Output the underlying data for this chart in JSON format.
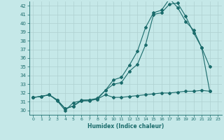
{
  "xlabel": "Humidex (Indice chaleur)",
  "xlim": [
    -0.5,
    23.5
  ],
  "ylim": [
    29.5,
    42.5
  ],
  "yticks": [
    30,
    31,
    32,
    33,
    34,
    35,
    36,
    37,
    38,
    39,
    40,
    41,
    42
  ],
  "xticks": [
    0,
    1,
    2,
    3,
    4,
    5,
    6,
    7,
    8,
    9,
    10,
    11,
    12,
    13,
    14,
    15,
    16,
    17,
    18,
    19,
    20,
    21,
    22,
    23
  ],
  "bg_color": "#c5e8e8",
  "line_color": "#1a6b6b",
  "grid_color": "#afd0d0",
  "line1_x": [
    0,
    1,
    2,
    3,
    4,
    5,
    6,
    7,
    8,
    9,
    10,
    11,
    12,
    13,
    14,
    15,
    16,
    17,
    18,
    19,
    20,
    21,
    22
  ],
  "line1_y": [
    31.5,
    31.6,
    31.8,
    31.1,
    30.0,
    30.9,
    31.1,
    31.2,
    31.3,
    31.8,
    31.5,
    31.5,
    31.6,
    31.7,
    31.8,
    31.9,
    32.0,
    32.0,
    32.1,
    32.2,
    32.2,
    32.3,
    32.2
  ],
  "line2_x": [
    0,
    1,
    2,
    3,
    4,
    5,
    6,
    7,
    8,
    9,
    10,
    11,
    12,
    13,
    14,
    15,
    16,
    17,
    18,
    19,
    20,
    21,
    22
  ],
  "line2_y": [
    31.5,
    31.6,
    31.8,
    31.2,
    30.2,
    30.5,
    31.2,
    31.2,
    31.4,
    32.3,
    33.0,
    33.2,
    34.5,
    35.3,
    37.5,
    41.0,
    41.2,
    42.2,
    42.3,
    40.8,
    38.9,
    37.2,
    35.0
  ],
  "line3_x": [
    0,
    1,
    2,
    3,
    4,
    5,
    6,
    7,
    8,
    9,
    10,
    11,
    12,
    13,
    14,
    15,
    16,
    17,
    18,
    19,
    20,
    21,
    22
  ],
  "line3_y": [
    31.5,
    31.6,
    31.8,
    31.2,
    30.2,
    30.5,
    31.1,
    31.1,
    31.3,
    32.3,
    33.5,
    33.8,
    35.2,
    36.8,
    39.5,
    41.2,
    41.5,
    42.8,
    41.8,
    40.2,
    39.2,
    37.2,
    32.2
  ],
  "lw": 0.8,
  "ms": 2.0
}
